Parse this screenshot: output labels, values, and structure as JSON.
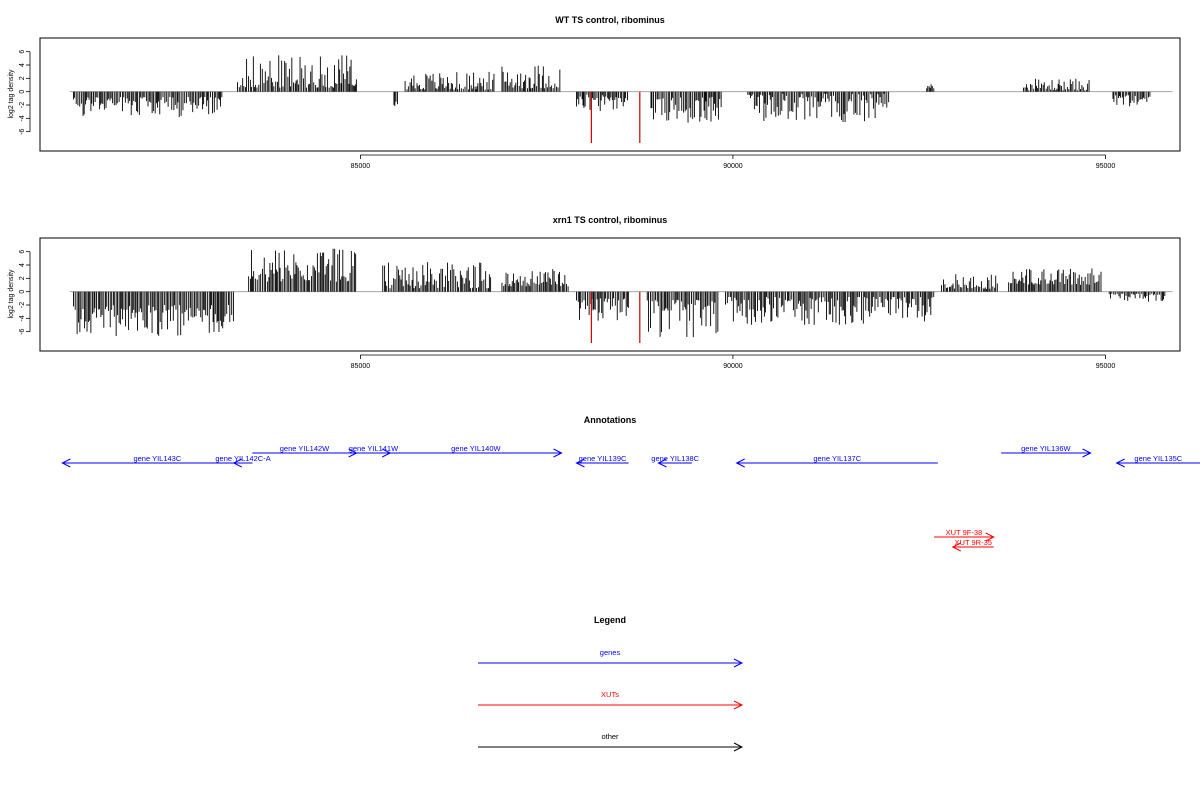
{
  "chart_data": [
    {
      "type": "bar",
      "title": "WT TS control, ribominus",
      "ylabel": "log2 tag density",
      "xlim": [
        80700,
        96000
      ],
      "ylim": [
        -8,
        7
      ],
      "yticks": [
        6,
        4,
        2,
        0,
        -2,
        -4,
        -6
      ],
      "xticks": [
        85000,
        90000,
        95000
      ],
      "highlight_color": "#d00000",
      "segments": [
        {
          "x0": 81150,
          "x1": 83150,
          "sign": -1,
          "min": 0.8,
          "max": 3.8
        },
        {
          "x0": 83350,
          "x1": 84950,
          "sign": 1,
          "min": 0.6,
          "max": 5.5
        },
        {
          "x0": 85450,
          "x1": 85500,
          "sign": -1,
          "min": 1.5,
          "max": 2.3
        },
        {
          "x0": 85600,
          "x1": 86800,
          "sign": 1,
          "min": 0.3,
          "max": 3.0
        },
        {
          "x0": 86900,
          "x1": 87700,
          "sign": 1,
          "min": 0.5,
          "max": 4.2
        },
        {
          "x0": 87900,
          "x1": 88600,
          "sign": -1,
          "min": 0.4,
          "max": 3.0
        },
        {
          "x0": 88900,
          "x1": 89850,
          "sign": -1,
          "min": 0.8,
          "max": 4.8
        },
        {
          "x0": 90200,
          "x1": 92100,
          "sign": -1,
          "min": 0.3,
          "max": 4.6
        },
        {
          "x0": 92600,
          "x1": 92700,
          "sign": 1,
          "min": 0.5,
          "max": 1.2
        },
        {
          "x0": 93900,
          "x1": 94800,
          "sign": 1,
          "min": 0.2,
          "max": 2.0
        },
        {
          "x0": 95100,
          "x1": 95600,
          "sign": -1,
          "min": 0.5,
          "max": 2.2
        }
      ],
      "highlights": [
        {
          "x": 88100,
          "value": -7.7
        },
        {
          "x": 88750,
          "value": -7.7
        }
      ]
    },
    {
      "type": "bar",
      "title": "xrn1 TS control, ribominus",
      "ylabel": "log2 tag density",
      "xlim": [
        80700,
        96000
      ],
      "ylim": [
        -8,
        7
      ],
      "yticks": [
        6,
        4,
        2,
        0,
        -2,
        -4,
        -6
      ],
      "xticks": [
        85000,
        90000,
        95000
      ],
      "highlight_color": "#d00000",
      "segments": [
        {
          "x0": 81150,
          "x1": 83300,
          "sign": -1,
          "min": 2.0,
          "max": 6.8
        },
        {
          "x0": 83500,
          "x1": 84950,
          "sign": 1,
          "min": 1.5,
          "max": 6.5
        },
        {
          "x0": 85300,
          "x1": 86750,
          "sign": 1,
          "min": 0.5,
          "max": 4.5
        },
        {
          "x0": 86900,
          "x1": 87800,
          "sign": 1,
          "min": 0.8,
          "max": 3.4
        },
        {
          "x0": 87900,
          "x1": 88600,
          "sign": -1,
          "min": 1.0,
          "max": 4.5
        },
        {
          "x0": 88850,
          "x1": 89800,
          "sign": -1,
          "min": 1.2,
          "max": 6.9
        },
        {
          "x0": 89900,
          "x1": 92700,
          "sign": -1,
          "min": 0.8,
          "max": 5.0
        },
        {
          "x0": 92800,
          "x1": 93550,
          "sign": 1,
          "min": 0.4,
          "max": 2.8
        },
        {
          "x0": 93700,
          "x1": 94950,
          "sign": 1,
          "min": 1.0,
          "max": 3.6
        },
        {
          "x0": 95050,
          "x1": 95800,
          "sign": -1,
          "min": 0.3,
          "max": 1.6
        }
      ],
      "highlights": [
        {
          "x": 88100,
          "value": -7.7
        },
        {
          "x": 88750,
          "value": -7.7
        }
      ]
    }
  ],
  "annotations": {
    "title": "Annotations",
    "genes_color": "#0000ff",
    "xuts_color": "#ff0000",
    "genes": [
      {
        "label": "gene YIL143C",
        "start": 81000,
        "end": 83550,
        "strand": "-"
      },
      {
        "label": "gene YIL142C-A",
        "start": 83300,
        "end": 83550,
        "strand": "-"
      },
      {
        "label": "gene YIL142W",
        "start": 83550,
        "end": 84950,
        "strand": "+"
      },
      {
        "label": "gene YIL141W",
        "start": 84950,
        "end": 85400,
        "strand": "+"
      },
      {
        "label": "gene YIL140W",
        "start": 85400,
        "end": 87700,
        "strand": "+"
      },
      {
        "label": "gene YIL139C",
        "start": 87900,
        "end": 88600,
        "strand": "-"
      },
      {
        "label": "gene YIL138C",
        "start": 89000,
        "end": 89450,
        "strand": "-"
      },
      {
        "label": "gene YIL137C",
        "start": 90050,
        "end": 92750,
        "strand": "-"
      },
      {
        "label": "gene YIL136W",
        "start": 93600,
        "end": 94800,
        "strand": "+"
      },
      {
        "label": "gene YIL135C",
        "start": 95150,
        "end": 96500,
        "strand": "-"
      }
    ],
    "xuts": [
      {
        "label": "XUT 9F-38",
        "start": 92700,
        "end": 93500,
        "strand": "+"
      },
      {
        "label": "XUT 9R-35",
        "start": 92950,
        "end": 93500,
        "strand": "-"
      }
    ]
  },
  "legend": {
    "title": "Legend",
    "items": [
      {
        "label": "genes",
        "color": "#0000ff"
      },
      {
        "label": "XUTs",
        "color": "#ff0000"
      },
      {
        "label": "other",
        "color": "#000000"
      }
    ]
  }
}
